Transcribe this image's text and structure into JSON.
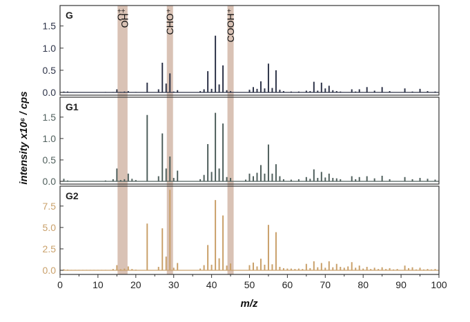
{
  "chart_data": {
    "type": "bar",
    "xlabel": "m/z",
    "ylabel": "intensity x10⁶ / cps",
    "xlim": [
      0,
      100
    ],
    "x_ticks": [
      0,
      10,
      20,
      30,
      40,
      50,
      60,
      70,
      80,
      90,
      100
    ],
    "ion_markers": [
      {
        "mz": 16,
        "label": "O⁺"
      },
      {
        "mz": 17,
        "label": "OH⁺"
      },
      {
        "mz": 29,
        "label": "CHO⁺"
      },
      {
        "mz": 45,
        "label": "COOH⁺"
      }
    ],
    "marker_color": "#d9c2b5",
    "panels": [
      {
        "label": "G",
        "color": "#2d3348",
        "ylim": [
          0,
          1.9
        ],
        "y_ticks": [
          "0.0",
          "0.5",
          "1.0",
          "1.5"
        ],
        "tick_values": [
          0,
          0.5,
          1.0,
          1.5
        ],
        "x": [
          1,
          2,
          12,
          14,
          15,
          16,
          17,
          18,
          20,
          23,
          26,
          27,
          28,
          29,
          30,
          31,
          37,
          38,
          39,
          40,
          41,
          42,
          43,
          44,
          45,
          50,
          51,
          52,
          53,
          54,
          55,
          56,
          57,
          58,
          59,
          61,
          63,
          65,
          66,
          67,
          68,
          69,
          70,
          71,
          72,
          73,
          74,
          77,
          78,
          79,
          81,
          83,
          85,
          87,
          91,
          93,
          95,
          97,
          99
        ],
        "values": [
          0.02,
          0.02,
          0.01,
          0.01,
          0.07,
          0.01,
          0.02,
          0.03,
          0.01,
          0.22,
          0.07,
          0.67,
          0.2,
          0.43,
          0.02,
          0.05,
          0.03,
          0.07,
          0.48,
          0.08,
          1.28,
          0.18,
          0.61,
          0.05,
          0.03,
          0.06,
          0.12,
          0.08,
          0.25,
          0.09,
          0.65,
          0.1,
          0.5,
          0.06,
          0.03,
          0.02,
          0.02,
          0.04,
          0.03,
          0.24,
          0.04,
          0.22,
          0.09,
          0.15,
          0.05,
          0.03,
          0.02,
          0.07,
          0.02,
          0.07,
          0.12,
          0.04,
          0.12,
          0.03,
          0.09,
          0.02,
          0.08,
          0.03,
          0.02
        ]
      },
      {
        "label": "G1",
        "color": "#4f5f5c",
        "ylim": [
          0,
          1.9
        ],
        "y_ticks": [
          "0.0",
          "0.5",
          "1.0",
          "1.5"
        ],
        "tick_values": [
          0,
          0.5,
          1.0,
          1.5
        ],
        "x": [
          1,
          2,
          12,
          14,
          15,
          16,
          17,
          18,
          19,
          20,
          23,
          26,
          27,
          28,
          29,
          30,
          31,
          37,
          38,
          39,
          40,
          41,
          42,
          43,
          44,
          45,
          49,
          50,
          51,
          52,
          53,
          54,
          55,
          56,
          57,
          58,
          59,
          61,
          63,
          65,
          66,
          67,
          68,
          69,
          70,
          71,
          72,
          73,
          74,
          77,
          78,
          79,
          81,
          83,
          85,
          87,
          91,
          93,
          95,
          97,
          99
        ],
        "values": [
          0.06,
          0.02,
          0.02,
          0.05,
          0.3,
          0.03,
          0.05,
          0.18,
          0.06,
          0.03,
          1.55,
          0.12,
          1.12,
          0.3,
          0.58,
          0.08,
          0.25,
          0.05,
          0.15,
          0.87,
          0.22,
          1.6,
          0.3,
          1.35,
          0.1,
          0.08,
          0.04,
          0.18,
          0.12,
          0.2,
          0.38,
          0.18,
          0.86,
          0.18,
          0.4,
          0.12,
          0.05,
          0.04,
          0.05,
          0.1,
          0.06,
          0.28,
          0.08,
          0.22,
          0.09,
          0.18,
          0.08,
          0.07,
          0.05,
          0.12,
          0.05,
          0.1,
          0.12,
          0.07,
          0.13,
          0.05,
          0.1,
          0.05,
          0.08,
          0.06,
          0.04
        ]
      },
      {
        "label": "G2",
        "color": "#c9a06a",
        "ylim": [
          0,
          9.5
        ],
        "y_ticks": [
          "0.0",
          "2.5",
          "5.0",
          "7.5"
        ],
        "tick_values": [
          0,
          2.5,
          5.0,
          7.5
        ],
        "x": [
          1,
          2,
          3,
          4,
          5,
          6,
          7,
          8,
          9,
          10,
          11,
          12,
          14,
          15,
          16,
          17,
          18,
          19,
          20,
          23,
          26,
          27,
          28,
          29,
          30,
          31,
          37,
          38,
          39,
          40,
          41,
          42,
          43,
          44,
          45,
          50,
          51,
          52,
          53,
          54,
          55,
          56,
          57,
          58,
          59,
          60,
          61,
          62,
          63,
          64,
          65,
          66,
          67,
          68,
          69,
          70,
          71,
          72,
          73,
          74,
          75,
          76,
          77,
          78,
          79,
          80,
          81,
          82,
          83,
          84,
          85,
          86,
          87,
          88,
          89,
          91,
          92,
          93,
          94,
          95,
          96,
          97,
          98,
          99
        ],
        "values": [
          0.12,
          0.08,
          0.05,
          0.05,
          0.05,
          0.05,
          0.05,
          0.05,
          0.05,
          0.05,
          0.05,
          0.05,
          0.15,
          0.6,
          0.12,
          0.2,
          0.45,
          0.15,
          0.08,
          5.45,
          0.4,
          4.9,
          1.6,
          9.4,
          0.3,
          0.85,
          0.2,
          0.6,
          2.95,
          0.65,
          8.2,
          1.4,
          6.4,
          0.55,
          0.8,
          0.6,
          0.9,
          0.45,
          1.35,
          0.65,
          5.3,
          0.7,
          4.45,
          0.4,
          0.25,
          0.2,
          0.2,
          0.15,
          0.2,
          0.15,
          0.75,
          0.25,
          1.05,
          0.35,
          0.85,
          0.3,
          1.05,
          0.35,
          0.75,
          0.4,
          0.3,
          0.45,
          0.95,
          0.3,
          0.55,
          0.2,
          0.4,
          0.15,
          0.3,
          0.15,
          0.35,
          0.15,
          0.25,
          0.1,
          0.15,
          0.55,
          0.25,
          0.35,
          0.1,
          0.3,
          0.1,
          0.15,
          0.1,
          0.15
        ]
      }
    ]
  }
}
